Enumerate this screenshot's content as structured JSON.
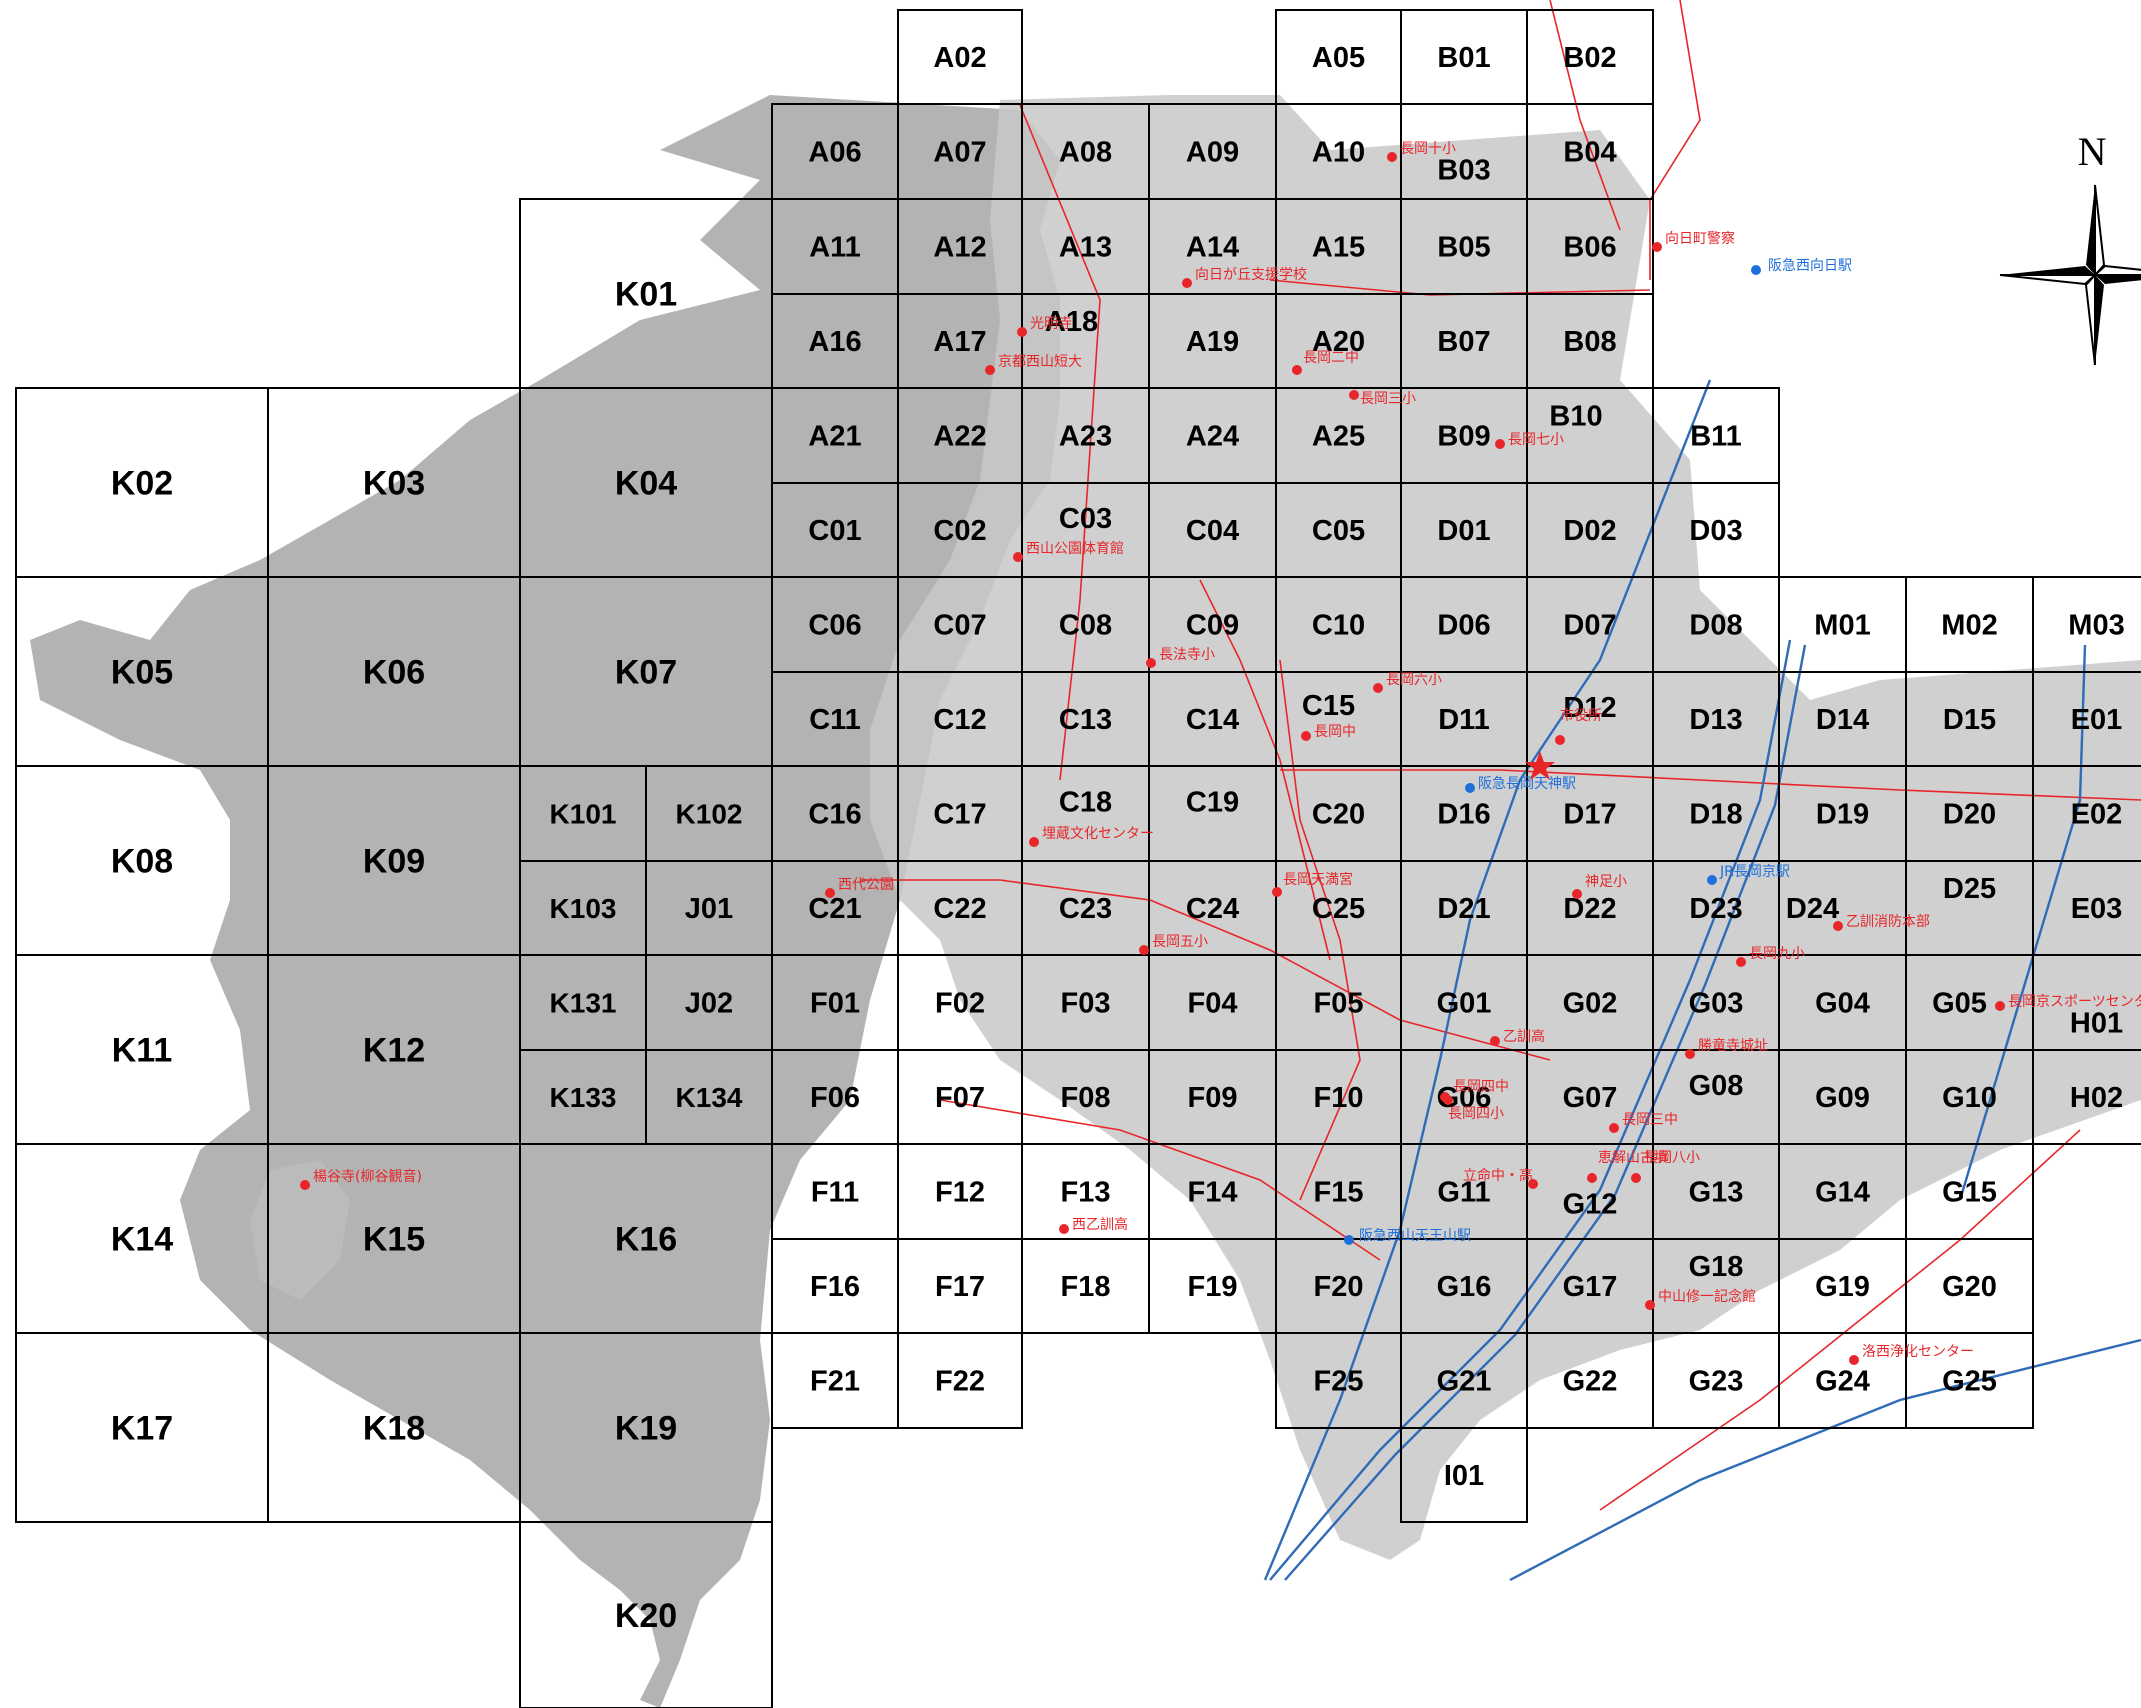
{
  "map": {
    "north_label": "N",
    "colors": {
      "grid_line": "#000000",
      "terrain": "#9a9a9a",
      "urban": "#c8c8c8",
      "road": "#e8262a",
      "rail": "#2f6bb6",
      "poi_red": "#e8262a",
      "poi_blue": "#1e6fd9"
    },
    "cells": [
      {
        "id": "A02"
      },
      {
        "id": "A05"
      },
      {
        "id": "B01"
      },
      {
        "id": "B02"
      },
      {
        "id": "A06"
      },
      {
        "id": "A07"
      },
      {
        "id": "A08"
      },
      {
        "id": "A09"
      },
      {
        "id": "A10"
      },
      {
        "id": "B03"
      },
      {
        "id": "B04"
      },
      {
        "id": "K01"
      },
      {
        "id": "A11"
      },
      {
        "id": "A12"
      },
      {
        "id": "A13"
      },
      {
        "id": "A14"
      },
      {
        "id": "A15"
      },
      {
        "id": "B05"
      },
      {
        "id": "B06"
      },
      {
        "id": "A16"
      },
      {
        "id": "A17"
      },
      {
        "id": "A18"
      },
      {
        "id": "A19"
      },
      {
        "id": "A20"
      },
      {
        "id": "B07"
      },
      {
        "id": "B08"
      },
      {
        "id": "K02"
      },
      {
        "id": "K03"
      },
      {
        "id": "K04"
      },
      {
        "id": "A21"
      },
      {
        "id": "A22"
      },
      {
        "id": "A23"
      },
      {
        "id": "A24"
      },
      {
        "id": "A25"
      },
      {
        "id": "B09"
      },
      {
        "id": "B10"
      },
      {
        "id": "B11"
      },
      {
        "id": "C01"
      },
      {
        "id": "C02"
      },
      {
        "id": "C03"
      },
      {
        "id": "C04"
      },
      {
        "id": "C05"
      },
      {
        "id": "D01"
      },
      {
        "id": "D02"
      },
      {
        "id": "D03"
      },
      {
        "id": "K05"
      },
      {
        "id": "K06"
      },
      {
        "id": "K07"
      },
      {
        "id": "C06"
      },
      {
        "id": "C07"
      },
      {
        "id": "C08"
      },
      {
        "id": "C09"
      },
      {
        "id": "C10"
      },
      {
        "id": "D06"
      },
      {
        "id": "D07"
      },
      {
        "id": "D08"
      },
      {
        "id": "M01"
      },
      {
        "id": "M02"
      },
      {
        "id": "M03"
      },
      {
        "id": "C11"
      },
      {
        "id": "C12"
      },
      {
        "id": "C13"
      },
      {
        "id": "C14"
      },
      {
        "id": "C15"
      },
      {
        "id": "D11"
      },
      {
        "id": "D12"
      },
      {
        "id": "D13"
      },
      {
        "id": "D14"
      },
      {
        "id": "D15"
      },
      {
        "id": "E01"
      },
      {
        "id": "K08"
      },
      {
        "id": "K09"
      },
      {
        "id": "K101"
      },
      {
        "id": "K102"
      },
      {
        "id": "C16"
      },
      {
        "id": "C17"
      },
      {
        "id": "C18"
      },
      {
        "id": "C19"
      },
      {
        "id": "C20"
      },
      {
        "id": "D16"
      },
      {
        "id": "D17"
      },
      {
        "id": "D18"
      },
      {
        "id": "D19"
      },
      {
        "id": "D20"
      },
      {
        "id": "E02"
      },
      {
        "id": "K103"
      },
      {
        "id": "J01"
      },
      {
        "id": "C21"
      },
      {
        "id": "C22"
      },
      {
        "id": "C23"
      },
      {
        "id": "C24"
      },
      {
        "id": "C25"
      },
      {
        "id": "D21"
      },
      {
        "id": "D22"
      },
      {
        "id": "D23"
      },
      {
        "id": "D24"
      },
      {
        "id": "D25"
      },
      {
        "id": "E03"
      },
      {
        "id": "K11"
      },
      {
        "id": "K12"
      },
      {
        "id": "K131"
      },
      {
        "id": "J02"
      },
      {
        "id": "F01"
      },
      {
        "id": "F02"
      },
      {
        "id": "F03"
      },
      {
        "id": "F04"
      },
      {
        "id": "F05"
      },
      {
        "id": "G01"
      },
      {
        "id": "G02"
      },
      {
        "id": "G03"
      },
      {
        "id": "G04"
      },
      {
        "id": "G05"
      },
      {
        "id": "H01"
      },
      {
        "id": "K133"
      },
      {
        "id": "K134"
      },
      {
        "id": "F06"
      },
      {
        "id": "F07"
      },
      {
        "id": "F08"
      },
      {
        "id": "F09"
      },
      {
        "id": "F10"
      },
      {
        "id": "G06"
      },
      {
        "id": "G07"
      },
      {
        "id": "G08"
      },
      {
        "id": "G09"
      },
      {
        "id": "G10"
      },
      {
        "id": "H02"
      },
      {
        "id": "K14"
      },
      {
        "id": "K15"
      },
      {
        "id": "K16"
      },
      {
        "id": "F11"
      },
      {
        "id": "F12"
      },
      {
        "id": "F13"
      },
      {
        "id": "F14"
      },
      {
        "id": "F15"
      },
      {
        "id": "G11"
      },
      {
        "id": "G12"
      },
      {
        "id": "G13"
      },
      {
        "id": "G14"
      },
      {
        "id": "G15"
      },
      {
        "id": "F16"
      },
      {
        "id": "F17"
      },
      {
        "id": "F18"
      },
      {
        "id": "F19"
      },
      {
        "id": "F20"
      },
      {
        "id": "G16"
      },
      {
        "id": "G17"
      },
      {
        "id": "G18"
      },
      {
        "id": "G19"
      },
      {
        "id": "G20"
      },
      {
        "id": "K17"
      },
      {
        "id": "K18"
      },
      {
        "id": "K19"
      },
      {
        "id": "F21"
      },
      {
        "id": "F22"
      },
      {
        "id": "F25"
      },
      {
        "id": "G21"
      },
      {
        "id": "G22"
      },
      {
        "id": "G23"
      },
      {
        "id": "G24"
      },
      {
        "id": "G25"
      },
      {
        "id": "I01"
      },
      {
        "id": "K20"
      }
    ],
    "pois": [
      {
        "label": "長岡十小",
        "color": "red"
      },
      {
        "label": "向日町警察",
        "color": "red"
      },
      {
        "label": "阪急西向日駅",
        "color": "blue"
      },
      {
        "label": "向日が丘支援学校",
        "color": "red"
      },
      {
        "label": "光明寺",
        "color": "red"
      },
      {
        "label": "京都西山短大",
        "color": "red"
      },
      {
        "label": "長岡二中",
        "color": "red"
      },
      {
        "label": "長岡三小",
        "color": "red"
      },
      {
        "label": "長岡七小",
        "color": "red"
      },
      {
        "label": "西山公園体育館",
        "color": "red"
      },
      {
        "label": "長法寺小",
        "color": "red"
      },
      {
        "label": "長岡六小",
        "color": "red"
      },
      {
        "label": "長岡中",
        "color": "red"
      },
      {
        "label": "市役所",
        "color": "red"
      },
      {
        "label": "阪急長岡天神駅",
        "color": "blue"
      },
      {
        "label": "埋蔵文化センター",
        "color": "red"
      },
      {
        "label": "西代公園",
        "color": "red"
      },
      {
        "label": "長岡天満宮",
        "color": "red"
      },
      {
        "label": "神足小",
        "color": "red"
      },
      {
        "label": "JR長岡京駅",
        "color": "blue"
      },
      {
        "label": "乙訓消防本部",
        "color": "red"
      },
      {
        "label": "長岡五小",
        "color": "red"
      },
      {
        "label": "長岡九小",
        "color": "red"
      },
      {
        "label": "長岡京スポーツセンター",
        "color": "red"
      },
      {
        "label": "乙訓高",
        "color": "red"
      },
      {
        "label": "勝竜寺城址",
        "color": "red"
      },
      {
        "label": "長岡四中",
        "color": "red"
      },
      {
        "label": "長岡四小",
        "color": "red"
      },
      {
        "label": "長岡三中",
        "color": "red"
      },
      {
        "label": "楊谷寺(柳谷観音)",
        "color": "red"
      },
      {
        "label": "立命中・高",
        "color": "red"
      },
      {
        "label": "恵解山古墳",
        "color": "red"
      },
      {
        "label": "長岡八小",
        "color": "red"
      },
      {
        "label": "西乙訓高",
        "color": "red"
      },
      {
        "label": "阪急西山天王山駅",
        "color": "blue"
      },
      {
        "label": "中山修一記念館",
        "color": "red"
      },
      {
        "label": "洛西浄化センター",
        "color": "red"
      }
    ]
  }
}
